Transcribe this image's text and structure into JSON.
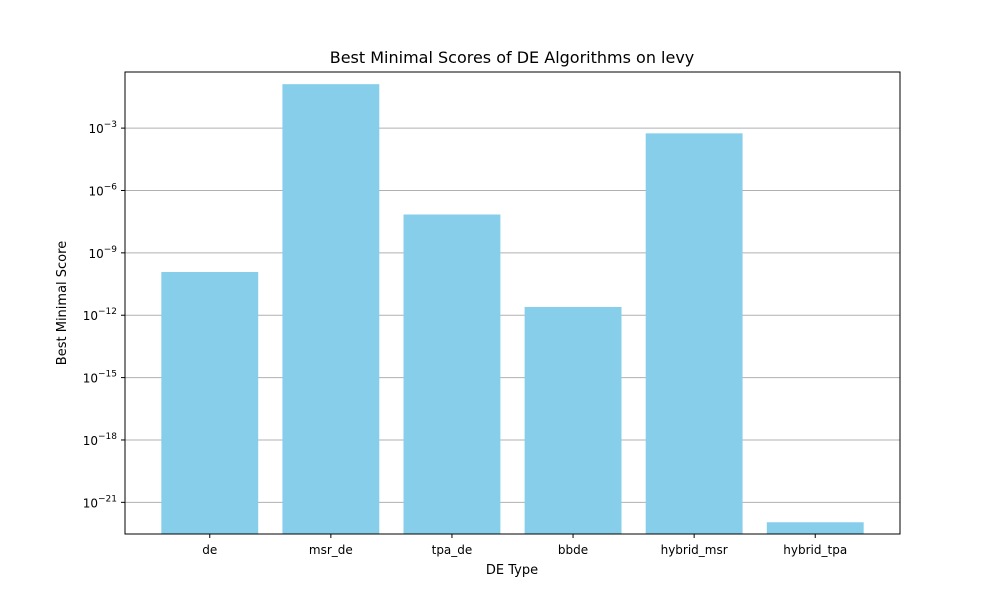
{
  "chart_data": {
    "type": "bar",
    "title": "Best Minimal Scores of DE Algorithms on levy",
    "xlabel": "DE Type",
    "ylabel": "Best Minimal Score",
    "y_scale": "log",
    "ylim": [
      3e-23,
      0.5
    ],
    "y_tick_labels": [
      "10^-21",
      "10^-18",
      "10^-15",
      "10^-12",
      "10^-9",
      "10^-6",
      "10^-3"
    ],
    "grid": "horizontal",
    "categories": [
      "de",
      "msr_de",
      "tpa_de",
      "bbde",
      "hybrid_msr",
      "hybrid_tpa"
    ],
    "values": [
      1.2e-10,
      0.13,
      7e-08,
      2.5e-12,
      0.00056,
      1.1e-22
    ],
    "colors": {
      "bar": "#87ceeb",
      "grid": "#b0b0b0",
      "axes": "#000000"
    }
  }
}
